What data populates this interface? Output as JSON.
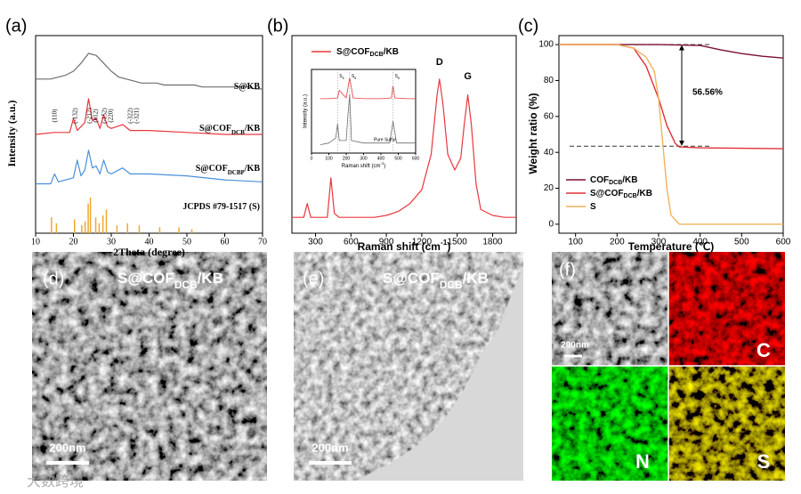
{
  "chart_data": [
    {
      "type": "line",
      "label": "(a)",
      "x_label": "2Theta (degree)",
      "y_label": "Intensity (a.u.)",
      "xlim": [
        10,
        70
      ],
      "ylim": [
        0,
        100
      ],
      "xticks": [
        10,
        20,
        30,
        40,
        50,
        60,
        70
      ],
      "series": [
        {
          "name": [
            "S@KB"
          ],
          "color": "#6e6e6e",
          "x": [
            10,
            12,
            14,
            16,
            18,
            20,
            22,
            24,
            26,
            28,
            30,
            32,
            34,
            36,
            38,
            40,
            42,
            44,
            46,
            48,
            50,
            52,
            54,
            56,
            58,
            60,
            62,
            64,
            66,
            68,
            70
          ],
          "values": [
            78,
            78,
            78,
            79,
            80,
            82,
            86,
            91,
            90,
            86,
            82,
            79,
            78,
            77,
            76,
            76,
            76,
            75,
            75,
            75,
            75,
            75,
            74,
            74,
            74,
            74,
            74,
            74,
            74,
            73,
            73
          ]
        },
        {
          "name": [
            "S@COF",
            "DCB",
            "/KB"
          ],
          "color": "#e8383d",
          "x": [
            10,
            15,
            19,
            20,
            21,
            23,
            24,
            25,
            26,
            27,
            28,
            29,
            30,
            33,
            35,
            40,
            50,
            60,
            70
          ],
          "values": [
            50,
            51,
            51,
            58,
            52,
            56,
            68,
            57,
            58,
            53,
            60,
            54,
            53,
            55,
            52,
            52,
            51,
            50,
            50
          ]
        },
        {
          "name": [
            "S@COF",
            "DCBP",
            "/KB"
          ],
          "color": "#4a90d9",
          "x": [
            10,
            14,
            15,
            16,
            20,
            21,
            22,
            23,
            24,
            25,
            26,
            27,
            28,
            29,
            30,
            33,
            35,
            40,
            50,
            60,
            70
          ],
          "values": [
            25,
            25,
            30,
            26,
            28,
            37,
            29,
            32,
            42,
            33,
            34,
            30,
            37,
            31,
            30,
            33,
            30,
            30,
            29,
            27,
            26
          ]
        }
      ],
      "reference": {
        "name": [
          "JCPDS #79-1517 (S)"
        ],
        "color": "#f0a830",
        "x": [
          14.2,
          15.5,
          20.3,
          22.2,
          23.1,
          23.9,
          24.5,
          25.9,
          26.8,
          27.8,
          28.7,
          31.5,
          34.3,
          37.4,
          42.8,
          47.9,
          51.3
        ],
        "values": [
          8,
          5,
          7,
          4,
          6,
          15,
          18,
          8,
          5,
          9,
          12,
          4,
          5,
          4,
          3,
          3,
          2
        ]
      },
      "annotations": [
        [
          "(110)"
        ],
        [
          "(-132)"
        ],
        [
          "(-212)",
          "(012)"
        ],
        [
          "(-152)",
          "(220)"
        ],
        [
          "(-322)",
          "(-321)"
        ]
      ]
    },
    {
      "type": "line",
      "label": "(b)",
      "x_label": [
        "Raman shift (cm",
        "-1",
        ")"
      ],
      "xlim": [
        100,
        2000
      ],
      "ylim": [
        0,
        100
      ],
      "xticks": [
        300,
        600,
        900,
        1200,
        1500,
        1800
      ],
      "series": [
        {
          "name": [
            "S@COF",
            "DCB",
            "/KB"
          ],
          "color": "#e8383d",
          "x": [
            100,
            200,
            230,
            260,
            300,
            400,
            430,
            460,
            500,
            600,
            800,
            900,
            1000,
            1100,
            1200,
            1280,
            1330,
            1350,
            1380,
            1420,
            1480,
            1530,
            1560,
            1590,
            1620,
            1660,
            1700,
            1800,
            1900,
            2000
          ],
          "values": [
            8,
            8,
            15,
            8,
            8,
            8,
            28,
            10,
            8,
            8,
            8,
            9,
            11,
            15,
            22,
            40,
            70,
            78,
            65,
            40,
            32,
            38,
            55,
            70,
            55,
            25,
            12,
            9,
            8,
            8
          ]
        }
      ],
      "peak_labels": [
        {
          "label": "D",
          "x": 1350
        },
        {
          "label": "G",
          "x": 1590
        }
      ],
      "inset": {
        "x_label": [
          "Raman shift (cm",
          "-1",
          ")"
        ],
        "y_label": "Intensity (a.u.)",
        "xlim": [
          0,
          600
        ],
        "ylim": [
          0,
          100
        ],
        "xticks": [
          0,
          100,
          200,
          300,
          400,
          500,
          600
        ],
        "series": [
          {
            "color": "#e8383d",
            "x": [
              50,
              100,
              150,
              160,
              200,
              220,
              240,
              300,
              400,
              460,
              470,
              480,
              550,
              600
            ],
            "values": [
              65,
              65,
              66,
              75,
              66,
              90,
              66,
              65,
              65,
              66,
              80,
              66,
              65,
              65
            ]
          },
          {
            "color": "#6e6e6e",
            "x": [
              50,
              100,
              140,
              150,
              160,
              200,
              210,
              220,
              230,
              300,
              400,
              450,
              470,
              490,
              600
            ],
            "values": [
              10,
              12,
              18,
              35,
              15,
              15,
              45,
              70,
              15,
              12,
              12,
              12,
              38,
              12,
              12
            ]
          }
        ],
        "markers": [
          {
            "x": 150,
            "label": [
              "S",
              "8"
            ]
          },
          {
            "x": 220,
            "label": [
              "S",
              "8"
            ]
          },
          {
            "x": 470,
            "label": [
              "S",
              "8"
            ]
          }
        ],
        "annotation": "Pure Sulfur"
      }
    },
    {
      "type": "line",
      "label": "(c)",
      "x_label": "Temperature (℃)",
      "y_label": "Weight ratio (%)",
      "xlim": [
        60,
        600
      ],
      "ylim": [
        -5,
        105
      ],
      "xticks": [
        100,
        200,
        300,
        400,
        500,
        600
      ],
      "yticks": [
        0,
        20,
        40,
        60,
        80,
        100
      ],
      "legend": "lower left",
      "series": [
        {
          "name": [
            "COF",
            "DCB",
            "/KB"
          ],
          "color": "#7a1030",
          "x": [
            60,
            300,
            400,
            450,
            500,
            550,
            600
          ],
          "values": [
            100,
            100,
            99.5,
            97,
            95,
            93.5,
            92.5
          ]
        },
        {
          "name": [
            "S@COF",
            "DCB",
            "/KB"
          ],
          "color": "#e0303a",
          "x": [
            60,
            200,
            240,
            270,
            300,
            320,
            340,
            350,
            400,
            600
          ],
          "values": [
            100,
            100,
            98,
            88,
            70,
            55,
            45,
            43,
            42.5,
            42
          ]
        },
        {
          "name": [
            "S"
          ],
          "color": "#f2b25c",
          "x": [
            60,
            200,
            240,
            270,
            290,
            300,
            310,
            320,
            330,
            350,
            600
          ],
          "values": [
            100,
            100,
            98,
            93,
            85,
            70,
            45,
            20,
            5,
            0,
            0
          ]
        }
      ],
      "reference_lines": [
        100,
        43.44
      ],
      "annotation": "56.56%"
    }
  ],
  "images": [
    {
      "label": "(d)",
      "title": [
        "S@COF",
        "DCB",
        "/KB"
      ],
      "scale": "200nm"
    },
    {
      "label": "(e)",
      "title": [
        "S@COF",
        "DCB",
        "/KB"
      ],
      "scale": "200nm"
    },
    {
      "label": "(f)",
      "scale": "200nm",
      "maps": [
        "C",
        "N",
        "S"
      ]
    }
  ],
  "watermark": "大数跨境"
}
